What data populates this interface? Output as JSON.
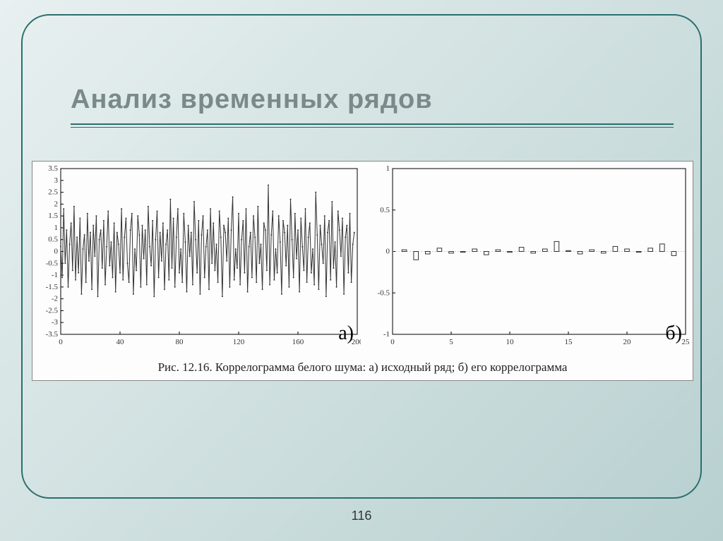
{
  "slide": {
    "title": "Анализ временных рядов",
    "page_number": "116",
    "frame_color": "#2a6e6e",
    "title_color": "#7a8a8a",
    "title_fontsize": 38,
    "background_gradient": [
      "#e8f0f0",
      "#d0e0e0",
      "#b8d0d0"
    ]
  },
  "figure": {
    "caption": "Рис. 12.16. Коррелограмма белого шума: а) исходный ряд; б) его коррелограмма",
    "caption_fontsize": 17,
    "background_color": "#fdfdfd",
    "border_color": "#888888"
  },
  "chart_a": {
    "type": "line",
    "panel_label": "а)",
    "xlim": [
      0,
      200
    ],
    "ylim": [
      -3.5,
      3.5
    ],
    "xticks": [
      0,
      40,
      80,
      120,
      160,
      200
    ],
    "xtick_labels": [
      "0",
      "40",
      "80",
      "120",
      "160",
      "200"
    ],
    "yticks": [
      -3.5,
      -3,
      -2.5,
      -2,
      -1.5,
      -1,
      -0.5,
      0,
      0.5,
      1,
      1.5,
      2,
      2.5,
      3,
      3.5
    ],
    "ytick_labels": [
      "-3.5",
      "-3",
      "-2.5",
      "-2",
      "-1.5",
      "-1",
      "-0.5",
      "0",
      "0.5",
      "1",
      "1.5",
      "2",
      "2.5",
      "3",
      "3.5"
    ],
    "line_color": "#333333",
    "line_width": 1,
    "marker": "dot",
    "marker_size": 1,
    "axis_color": "#000000",
    "tick_fontsize": 11,
    "data": [
      0.2,
      -1.1,
      1.8,
      -0.5,
      0.9,
      -1.5,
      0.3,
      1.2,
      -0.8,
      1.9,
      -1.2,
      0.6,
      -0.9,
      1.4,
      -1.8,
      0.1,
      0.7,
      -1.3,
      1.6,
      -0.4,
      0.8,
      -1.6,
      1.1,
      -0.2,
      1.5,
      -1.9,
      0.5,
      0.9,
      -0.7,
      1.3,
      -1.4,
      0.2,
      1.7,
      -0.6,
      0.4,
      -1.1,
      1.2,
      -1.7,
      0.8,
      0.3,
      -0.9,
      1.8,
      -1.2,
      0.6,
      1.4,
      -0.5,
      -1.3,
      0.9,
      1.6,
      -1.8,
      0.1,
      -0.8,
      1.5,
      0.7,
      -1.5,
      1.1,
      -0.3,
      0.9,
      -1.4,
      1.9,
      0.2,
      -0.6,
      1.3,
      -1.9,
      0.5,
      1.7,
      -1.1,
      0.8,
      -0.4,
      1.2,
      -1.6,
      0.3,
      0.9,
      -1.2,
      2.2,
      -0.7,
      1.4,
      -1.5,
      0.6,
      1.8,
      -0.9,
      0.1,
      -1.3,
      1.6,
      0.4,
      -1.7,
      1.1,
      -0.2,
      0.8,
      -1.4,
      2.1,
      0.5,
      -0.9,
      1.3,
      -1.8,
      0.7,
      1.5,
      -1.1,
      0.2,
      0.9,
      -1.6,
      1.8,
      -0.5,
      1.2,
      -0.8,
      0.3,
      -1.3,
      1.7,
      0.6,
      -1.9,
      1.1,
      0.8,
      -0.4,
      1.4,
      -1.5,
      0.9,
      2.3,
      -1.2,
      0.1,
      -0.7,
      1.6,
      -1.4,
      0.5,
      1.3,
      -0.9,
      1.8,
      -1.7,
      0.2,
      0.8,
      -1.1,
      1.5,
      0.6,
      -1.3,
      1.9,
      -0.5,
      0.3,
      -1.6,
      1.2,
      0.9,
      -0.8,
      2.8,
      -1.4,
      0.7,
      1.7,
      -1.2,
      0.1,
      -0.9,
      1.5,
      0.4,
      -1.8,
      1.3,
      0.8,
      -0.6,
      1.1,
      -1.5,
      2.2,
      0.5,
      -1.1,
      1.6,
      -0.3,
      0.9,
      -1.7,
      1.4,
      0.2,
      -0.8,
      1.8,
      -1.3,
      0.6,
      1.2,
      -0.9,
      0.1,
      -1.4,
      2.5,
      0.7,
      -1.6,
      1.1,
      0.3,
      -0.5,
      1.5,
      -1.9,
      0.8,
      1.3,
      -1.2,
      2.1,
      -0.7,
      0.4,
      -1.5,
      1.7,
      0.9,
      -0.2,
      1.4,
      -1.8,
      0.6,
      1.1,
      -0.9,
      1.6,
      -1.3,
      0.3,
      0.8
    ]
  },
  "chart_b": {
    "type": "bar",
    "panel_label": "б)",
    "xlim": [
      0,
      25
    ],
    "ylim": [
      -1,
      1
    ],
    "xticks": [
      0,
      5,
      10,
      15,
      20,
      25
    ],
    "xtick_labels": [
      "0",
      "5",
      "10",
      "15",
      "20",
      "25"
    ],
    "yticks": [
      -1,
      -0.5,
      0,
      0.5,
      1
    ],
    "ytick_labels": [
      "-1",
      "-0.5",
      "0",
      "0.5",
      "1"
    ],
    "bar_outline_color": "#333333",
    "bar_fill_color": "none",
    "bar_width": 0.4,
    "axis_color": "#000000",
    "tick_fontsize": 11,
    "lags": [
      1,
      2,
      3,
      4,
      5,
      6,
      7,
      8,
      9,
      10,
      11,
      12,
      13,
      14,
      15,
      16,
      17,
      18,
      19,
      20,
      21,
      22,
      23,
      24
    ],
    "values": [
      0.02,
      -0.1,
      -0.03,
      0.04,
      -0.02,
      -0.01,
      0.03,
      -0.04,
      0.02,
      -0.01,
      0.05,
      -0.02,
      0.03,
      0.12,
      0.01,
      -0.03,
      0.02,
      -0.02,
      0.06,
      0.03,
      -0.01,
      0.04,
      0.09,
      -0.05
    ]
  }
}
